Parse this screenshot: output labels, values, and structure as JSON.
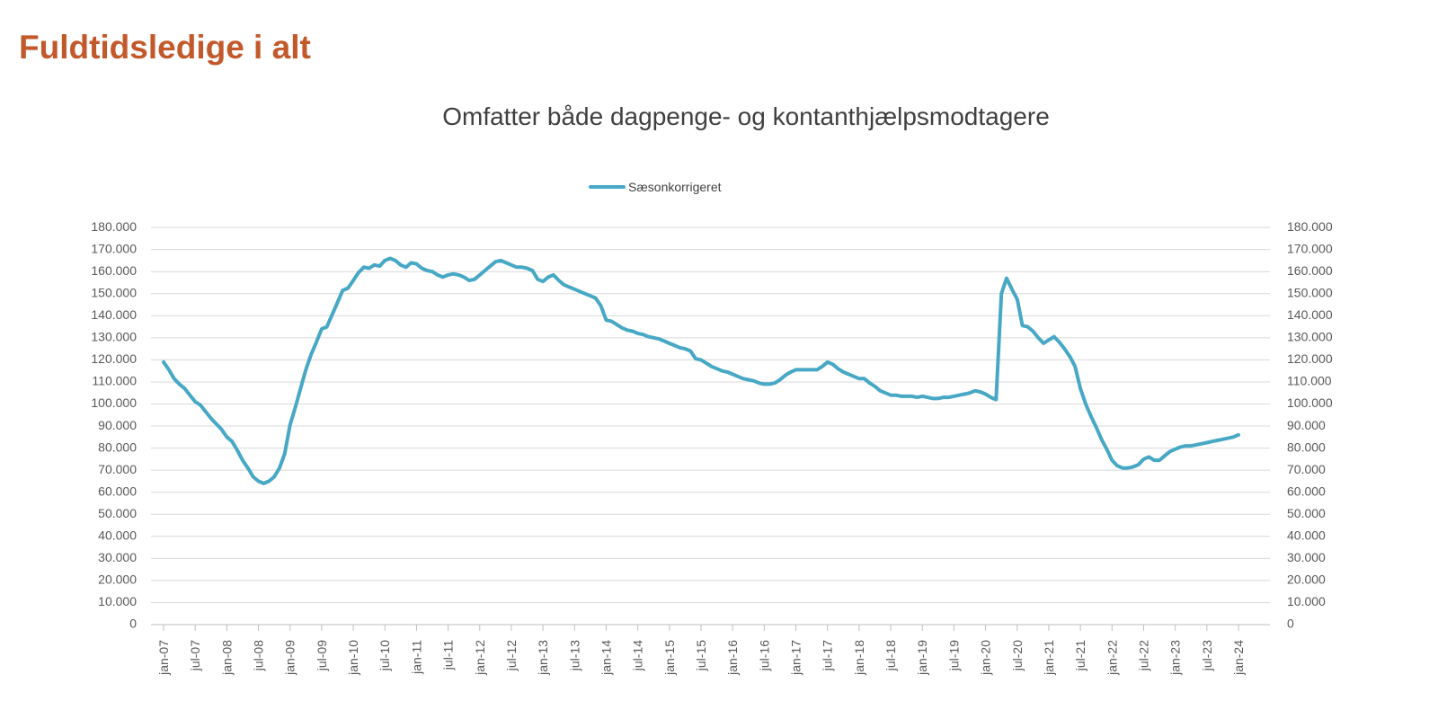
{
  "header": {
    "title": "Fuldtidsledige i alt"
  },
  "chart": {
    "subtitle": "Omfatter både dagpenge- og kontanthjælpsmodtagere",
    "legend_label": "Sæsonkorrigeret"
  },
  "colors": {
    "title": "#C2592B",
    "subtitle": "#404040",
    "line": "#47A8C5",
    "grid": "#D9D9D9",
    "axis_line": "#BFBFBF",
    "axis_text": "#595959"
  },
  "chart_data": {
    "type": "line",
    "title": "Omfatter både dagpenge- og kontanthjælpsmodtagere",
    "legend": [
      "Sæsonkorrigeret"
    ],
    "legend_position": "top-center",
    "grid": "horizontal",
    "x_unit": "month",
    "x_range": [
      "jan-07",
      "jan-24"
    ],
    "x_tick_interval_months": 6,
    "x_tick_labels": [
      "jan-07",
      "jul-07",
      "jan-08",
      "jul-08",
      "jan-09",
      "jul-09",
      "jan-10",
      "jul-10",
      "jan-11",
      "jul-11",
      "jan-12",
      "jul-12",
      "jan-13",
      "jul-13",
      "jan-14",
      "jul-14",
      "jan-15",
      "jul-15",
      "jan-16",
      "jul-16",
      "jan-17",
      "jul-17",
      "jan-18",
      "jul-18",
      "jan-19",
      "jul-19",
      "jan-20",
      "jul-20",
      "jan-21",
      "jul-21",
      "jan-22",
      "jul-22",
      "jan-23",
      "jul-23",
      "jan-24"
    ],
    "ylim": [
      0,
      180000
    ],
    "y_tick_step": 10000,
    "y_tick_format": "da-DK thousands with dot, e.g. 180.000",
    "series": [
      {
        "name": "Sæsonkorrigeret",
        "color": "#47A8C5",
        "start": "jan-07",
        "interval_months": 1,
        "values": [
          119000,
          115500,
          111500,
          109000,
          107000,
          104000,
          101000,
          99500,
          96500,
          93500,
          91000,
          88500,
          85000,
          83000,
          79000,
          74500,
          71000,
          67000,
          65000,
          64000,
          65000,
          67000,
          71000,
          77500,
          90500,
          98500,
          107000,
          115500,
          122500,
          128000,
          134000,
          135000,
          140500,
          146000,
          151500,
          152500,
          156000,
          159500,
          162000,
          161500,
          163000,
          162500,
          165000,
          166000,
          165000,
          163000,
          162000,
          164000,
          163500,
          161500,
          160500,
          160000,
          158500,
          157500,
          158500,
          159000,
          158500,
          157500,
          156000,
          156500,
          158500,
          160500,
          162500,
          164500,
          165000,
          164000,
          163000,
          162000,
          162000,
          161500,
          160500,
          156500,
          155500,
          157500,
          158500,
          156000,
          154000,
          153000,
          152000,
          151000,
          150000,
          149000,
          148000,
          144500,
          138000,
          137500,
          136000,
          134500,
          133500,
          133000,
          132000,
          131500,
          130500,
          130000,
          129500,
          128500,
          127500,
          126500,
          125500,
          125000,
          124000,
          120500,
          120000,
          118500,
          117000,
          116000,
          115000,
          114500,
          113500,
          112500,
          111500,
          111000,
          110500,
          109500,
          109000,
          109000,
          109500,
          111000,
          113000,
          114500,
          115500,
          115500,
          115500,
          115500,
          115500,
          117000,
          119000,
          118000,
          116000,
          114500,
          113500,
          112500,
          111500,
          111500,
          109500,
          108000,
          106000,
          105000,
          104000,
          104000,
          103500,
          103500,
          103500,
          103000,
          103500,
          103000,
          102500,
          102500,
          103000,
          103000,
          103500,
          104000,
          104500,
          105000,
          106000,
          105500,
          104500,
          103000,
          102000,
          150000,
          157000,
          152000,
          147500,
          135500,
          135000,
          133000,
          130000,
          127500,
          129000,
          130500,
          128000,
          125000,
          121500,
          117000,
          107000,
          100000,
          94500,
          89500,
          84000,
          79500,
          74500,
          72000,
          71000,
          71000,
          71500,
          72500,
          75000,
          76000,
          74500,
          74500,
          76500,
          78500,
          79500,
          80500,
          81000,
          81000,
          81500,
          82000,
          82500,
          83000,
          83500,
          84000,
          84500,
          85000,
          86000
        ]
      }
    ]
  }
}
